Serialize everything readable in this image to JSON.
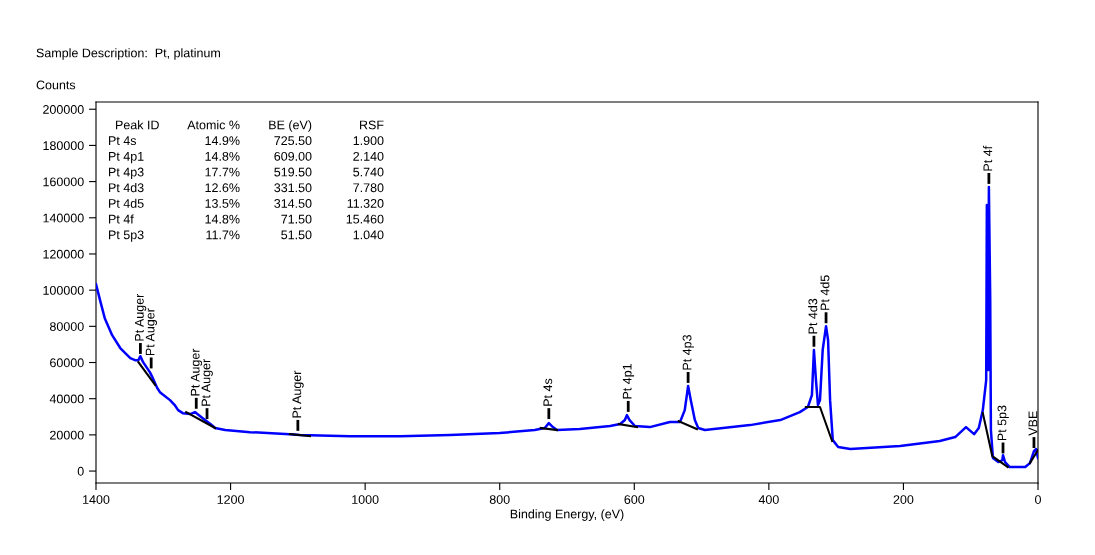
{
  "chart_data": {
    "type": "line",
    "title": "Sample Description:  Pt, platinum",
    "xlabel": "Binding Energy, (eV)",
    "ylabel": "Counts",
    "xlim": [
      1400,
      0
    ],
    "xticks": [
      1400,
      1200,
      1000,
      800,
      600,
      400,
      200,
      0
    ],
    "ylim": [
      -6600,
      204000
    ],
    "yticks": [
      0,
      20000,
      40000,
      60000,
      80000,
      100000,
      120000,
      140000,
      160000,
      180000,
      200000
    ],
    "grid": false,
    "legend": false,
    "marker": "none",
    "line_style": "solid",
    "series": [
      {
        "color": "#0000ff",
        "x": [
          1400,
          1394,
          1387,
          1376,
          1364,
          1349,
          1342,
          1337,
          1334,
          1330,
          1320,
          1317,
          1309,
          1305,
          1290,
          1283,
          1278,
          1271,
          1260,
          1253,
          1247,
          1238,
          1230,
          1223,
          1208,
          1171,
          1112,
          1097,
          1022,
          948,
          874,
          800,
          748,
          733,
          727,
          721,
          715,
          681,
          636,
          621,
          614,
          611,
          607,
          599,
          577,
          547,
          532,
          525,
          520,
          516,
          510,
          505,
          495,
          428,
          383,
          354,
          342,
          336,
          333,
          330,
          327,
          324,
          320,
          315,
          312,
          309,
          305,
          297,
          279,
          205,
          146,
          123,
          107,
          95,
          88,
          82,
          77,
          76,
          74,
          73,
          71,
          70,
          67,
          59,
          53,
          52,
          49,
          42,
          19,
          12,
          6,
          3,
          0
        ],
        "values": [
          103300,
          94500,
          84500,
          75100,
          68000,
          62400,
          61300,
          61300,
          63500,
          60200,
          54700,
          52500,
          45900,
          43600,
          39200,
          36500,
          33700,
          32000,
          31500,
          32600,
          30900,
          28200,
          26000,
          23800,
          22700,
          21500,
          20400,
          19900,
          19300,
          19300,
          19900,
          21000,
          22700,
          23800,
          26500,
          24300,
          22700,
          23200,
          24900,
          26000,
          28200,
          30900,
          28200,
          24900,
          24300,
          27100,
          27100,
          33700,
          47000,
          39200,
          28200,
          23800,
          22700,
          25400,
          28200,
          32600,
          35400,
          42000,
          66900,
          50300,
          36500,
          39200,
          66900,
          80100,
          72400,
          39200,
          17100,
          13300,
          12200,
          13800,
          16600,
          18800,
          24300,
          20400,
          23800,
          33700,
          50300,
          147000,
          55800,
          157000,
          94500,
          22700,
          7200,
          5000,
          6100,
          8800,
          5000,
          2200,
          2200,
          4400,
          11000,
          12200,
          7200
        ]
      },
      {
        "color": "#000000",
        "x": [
          1337,
          1312
        ],
        "values": [
          60200,
          47500
        ]
      },
      {
        "color": "#000000",
        "x": [
          1266,
          1223
        ],
        "values": [
          32600,
          23800
        ]
      },
      {
        "color": "#000000",
        "x": [
          1112,
          1082
        ],
        "values": [
          20400,
          19300
        ]
      },
      {
        "color": "#000000",
        "x": [
          739,
          715
        ],
        "values": [
          23800,
          22700
        ]
      },
      {
        "color": "#000000",
        "x": [
          623,
          596
        ],
        "values": [
          26000,
          24300
        ]
      },
      {
        "color": "#000000",
        "x": [
          534,
          507
        ],
        "values": [
          27600,
          23200
        ]
      },
      {
        "color": "#000000",
        "x": [
          345,
          324,
          306
        ],
        "values": [
          35400,
          35400,
          16600
        ]
      },
      {
        "color": "#000000",
        "x": [
          82,
          68,
          45
        ],
        "values": [
          32000,
          8300,
          2200
        ]
      },
      {
        "color": "#000000",
        "x": [
          12,
          0
        ],
        "values": [
          4400,
          11600
        ]
      }
    ],
    "annotations": [
      {
        "text": "Pt Auger",
        "x": 1334,
        "y": 64000
      },
      {
        "text": "Pt Auger",
        "x": 1318,
        "y": 56000
      },
      {
        "text": "Pt Auger",
        "x": 1251,
        "y": 33700
      },
      {
        "text": "Pt Auger",
        "x": 1235,
        "y": 28000
      },
      {
        "text": "Pt Auger",
        "x": 1100,
        "y": 21500
      },
      {
        "text": "Pt 4s",
        "x": 727,
        "y": 28000
      },
      {
        "text": "Pt 4p1",
        "x": 609,
        "y": 32000
      },
      {
        "text": "Pt 4p3",
        "x": 520,
        "y": 48000
      },
      {
        "text": "Pt 4d3",
        "x": 333,
        "y": 68000
      },
      {
        "text": "Pt 4d5",
        "x": 315,
        "y": 81000
      },
      {
        "text": "Pt 4f",
        "x": 73,
        "y": 158000
      },
      {
        "text": "Pt 5p3",
        "x": 52,
        "y": 9000
      },
      {
        "text": "VBE",
        "x": 6,
        "y": 12000
      },
      "Peak ID",
      "Atomic %",
      "BE (eV)",
      "RSF",
      "Pt 4s",
      "14.9%",
      "725.50",
      "1.900",
      "Pt 4p1",
      "14.8%",
      "609.00",
      "2.140",
      "Pt 4p3",
      "17.7%",
      "519.50",
      "5.740",
      "Pt 4d3",
      "12.6%",
      "331.50",
      "7.780",
      "Pt 4d5",
      "13.5%",
      "314.50",
      "11.320",
      "Pt 4f",
      "14.8%",
      "71.50",
      "15.460",
      "Pt 5p3",
      "11.7%",
      "51.50",
      "1.040"
    ]
  }
}
